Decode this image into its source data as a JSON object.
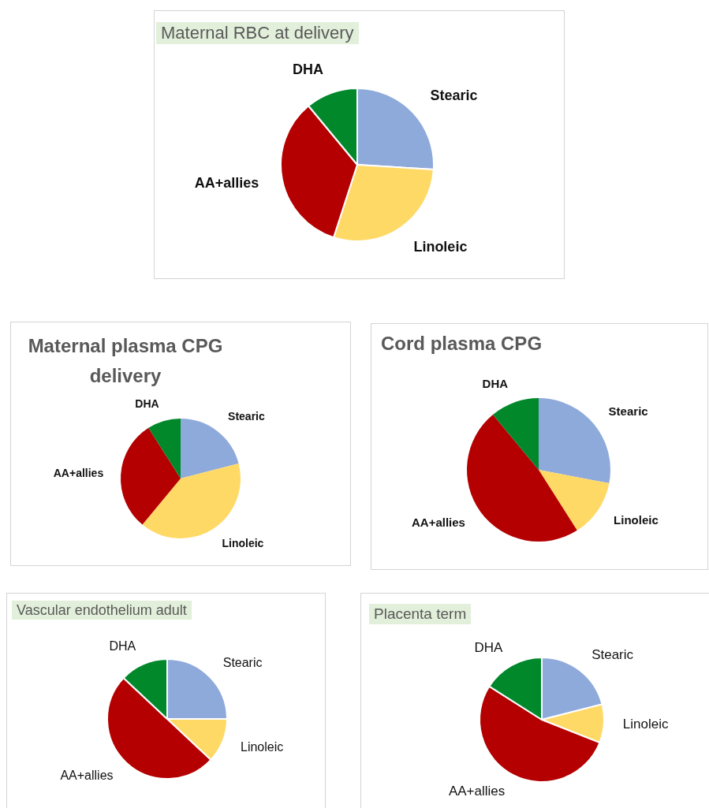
{
  "chart_data": [
    {
      "type": "pie",
      "title": "Maternal RBC at delivery",
      "categories": [
        "Stearic",
        "Linoleic",
        "AA+allies",
        "DHA"
      ],
      "values": [
        26,
        29,
        34,
        11
      ],
      "colors": [
        "#8eaadb",
        "#ffd966",
        "#b40000",
        "#00882b"
      ]
    },
    {
      "type": "pie",
      "title": "Maternal plasma CPG delivery",
      "categories": [
        "Stearic",
        "Linoleic",
        "AA+allies",
        "DHA"
      ],
      "values": [
        21,
        40,
        30,
        9
      ],
      "colors": [
        "#8eaadb",
        "#ffd966",
        "#b40000",
        "#00882b"
      ]
    },
    {
      "type": "pie",
      "title": "Cord plasma CPG",
      "categories": [
        "Stearic",
        "Linoleic",
        "AA+allies",
        "DHA"
      ],
      "values": [
        28,
        13,
        48,
        11
      ],
      "colors": [
        "#8eaadb",
        "#ffd966",
        "#b40000",
        "#00882b"
      ]
    },
    {
      "type": "pie",
      "title": "Vascular endothelium adult",
      "categories": [
        "Stearic",
        "Linoleic",
        "AA+allies",
        "DHA"
      ],
      "values": [
        25,
        12,
        50,
        13
      ],
      "colors": [
        "#8eaadb",
        "#ffd966",
        "#b40000",
        "#00882b"
      ]
    },
    {
      "type": "pie",
      "title": "Placenta term",
      "categories": [
        "Stearic",
        "Linoleic",
        "AA+allies",
        "DHA"
      ],
      "values": [
        21,
        10,
        53,
        16
      ],
      "colors": [
        "#8eaadb",
        "#ffd966",
        "#b40000",
        "#00882b"
      ]
    }
  ]
}
